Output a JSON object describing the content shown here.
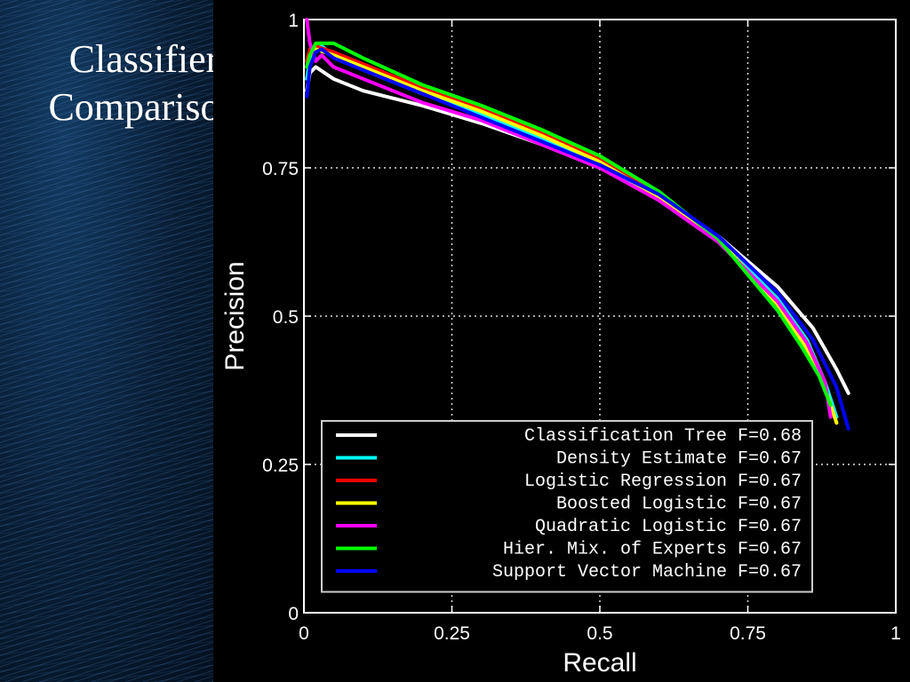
{
  "slide": {
    "title_line1": "Classifier",
    "title_line2": "Comparison",
    "background_accent": "#0b2a4a"
  },
  "chart_data": {
    "type": "line",
    "xlabel": "Recall",
    "ylabel": "Precision",
    "xlim": [
      0,
      1
    ],
    "ylim": [
      0,
      1
    ],
    "xticks": [
      0,
      0.25,
      0.5,
      0.75,
      1
    ],
    "yticks": [
      0,
      0.25,
      0.5,
      0.75,
      1
    ],
    "xtick_labels": [
      "0",
      "0.25",
      "0.5",
      "0.75",
      "1"
    ],
    "ytick_labels": [
      "0",
      "0.25",
      "0.5",
      "0.75",
      "1"
    ],
    "grid": true,
    "legend_position": "bottom-right",
    "background": "#000000",
    "series": [
      {
        "name": "Classification Tree F=0.68",
        "color": "#ffffff",
        "x": [
          0.005,
          0.01,
          0.02,
          0.05,
          0.1,
          0.2,
          0.3,
          0.4,
          0.5,
          0.6,
          0.7,
          0.8,
          0.86,
          0.9,
          0.92
        ],
        "y": [
          0.88,
          0.91,
          0.92,
          0.9,
          0.88,
          0.855,
          0.825,
          0.79,
          0.75,
          0.7,
          0.635,
          0.55,
          0.48,
          0.41,
          0.37
        ]
      },
      {
        "name": "Density Estimate F=0.67",
        "color": "#00ffff",
        "x": [
          0.005,
          0.01,
          0.02,
          0.03,
          0.05,
          0.1,
          0.2,
          0.3,
          0.4,
          0.5,
          0.6,
          0.7,
          0.8,
          0.85,
          0.88,
          0.9
        ],
        "y": [
          0.9,
          0.93,
          0.95,
          0.955,
          0.94,
          0.915,
          0.875,
          0.84,
          0.8,
          0.755,
          0.7,
          0.63,
          0.53,
          0.46,
          0.39,
          0.33
        ]
      },
      {
        "name": "Logistic Regression F=0.67",
        "color": "#ff0000",
        "x": [
          0.005,
          0.01,
          0.02,
          0.05,
          0.1,
          0.2,
          0.3,
          0.4,
          0.5,
          0.6,
          0.7,
          0.8,
          0.85,
          0.88,
          0.9
        ],
        "y": [
          0.93,
          0.95,
          0.955,
          0.945,
          0.925,
          0.885,
          0.85,
          0.81,
          0.765,
          0.705,
          0.63,
          0.52,
          0.445,
          0.38,
          0.32
        ]
      },
      {
        "name": "Boosted Logistic F=0.67",
        "color": "#ffff00",
        "x": [
          0.005,
          0.01,
          0.02,
          0.05,
          0.1,
          0.2,
          0.3,
          0.4,
          0.5,
          0.6,
          0.7,
          0.8,
          0.85,
          0.88,
          0.9
        ],
        "y": [
          0.92,
          0.94,
          0.95,
          0.94,
          0.92,
          0.88,
          0.845,
          0.805,
          0.76,
          0.7,
          0.63,
          0.52,
          0.445,
          0.38,
          0.32
        ]
      },
      {
        "name": "Quadratic Logistic F=0.67",
        "color": "#ff00ff",
        "x": [
          0.005,
          0.01,
          0.02,
          0.03,
          0.05,
          0.1,
          0.2,
          0.3,
          0.4,
          0.5,
          0.6,
          0.7,
          0.8,
          0.85,
          0.88,
          0.89
        ],
        "y": [
          1.0,
          0.96,
          0.93,
          0.94,
          0.92,
          0.9,
          0.86,
          0.83,
          0.79,
          0.75,
          0.695,
          0.625,
          0.525,
          0.455,
          0.39,
          0.33
        ]
      },
      {
        "name": "Hier. Mix. of Experts F=0.67",
        "color": "#00ff00",
        "x": [
          0.005,
          0.01,
          0.02,
          0.05,
          0.1,
          0.2,
          0.3,
          0.4,
          0.5,
          0.6,
          0.7,
          0.8,
          0.84,
          0.87,
          0.89
        ],
        "y": [
          0.92,
          0.94,
          0.96,
          0.96,
          0.935,
          0.89,
          0.855,
          0.815,
          0.77,
          0.71,
          0.63,
          0.51,
          0.45,
          0.4,
          0.35
        ]
      },
      {
        "name": "Support Vector Machine F=0.67",
        "color": "#0000ff",
        "x": [
          0.005,
          0.01,
          0.02,
          0.03,
          0.05,
          0.1,
          0.2,
          0.3,
          0.4,
          0.5,
          0.6,
          0.7,
          0.8,
          0.86,
          0.9,
          0.92
        ],
        "y": [
          0.87,
          0.92,
          0.945,
          0.95,
          0.935,
          0.915,
          0.875,
          0.835,
          0.795,
          0.755,
          0.705,
          0.635,
          0.54,
          0.46,
          0.38,
          0.31
        ]
      }
    ]
  }
}
